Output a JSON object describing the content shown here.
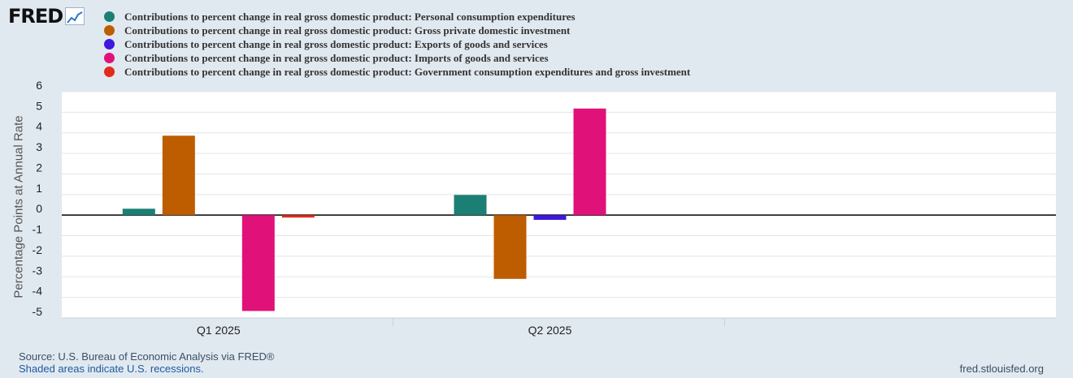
{
  "brand": {
    "logo_text": "FRED"
  },
  "chart_data": {
    "type": "bar",
    "categories": [
      "Q1 2025",
      "Q2 2025"
    ],
    "series": [
      {
        "name": "Contributions to percent change in real gross domestic product: Personal consumption expenditures",
        "color": "#1b7f74",
        "values": [
          0.31,
          0.98
        ]
      },
      {
        "name": "Contributions to percent change in real gross domestic product: Gross private domestic investment",
        "color": "#bd5d00",
        "values": [
          3.86,
          -3.1
        ]
      },
      {
        "name": "Contributions to percent change in real gross domestic product: Exports of goods and services",
        "color": "#3e18e0",
        "values": [
          0.0,
          -0.23
        ]
      },
      {
        "name": "Contributions to percent change in real gross domestic product: Imports of goods and services",
        "color": "#e0127a",
        "values": [
          -4.66,
          5.18
        ]
      },
      {
        "name": "Contributions to percent change in real gross domestic product: Government consumption expenditures and gross investment",
        "color": "#e42a1a",
        "values": [
          -0.12,
          0.0
        ]
      }
    ],
    "ylabel": "Percentage Points at Annual Rate",
    "ylim": [
      -5,
      6
    ],
    "yticks": [
      -5,
      -4,
      -3,
      -2,
      -1,
      0,
      1,
      2,
      3,
      4,
      5,
      6
    ],
    "ytick_labels": [
      "-5",
      "-4",
      "-3",
      "-2",
      "-1",
      "0",
      "1",
      "2",
      "3",
      "4",
      "5",
      "6"
    ],
    "grid": true,
    "legend_position": "top"
  },
  "footer": {
    "source": "Source: U.S. Bureau of Economic Analysis via FRED®",
    "recessions": "Shaded areas indicate U.S. recessions.",
    "url": "fred.stlouisfed.org"
  }
}
